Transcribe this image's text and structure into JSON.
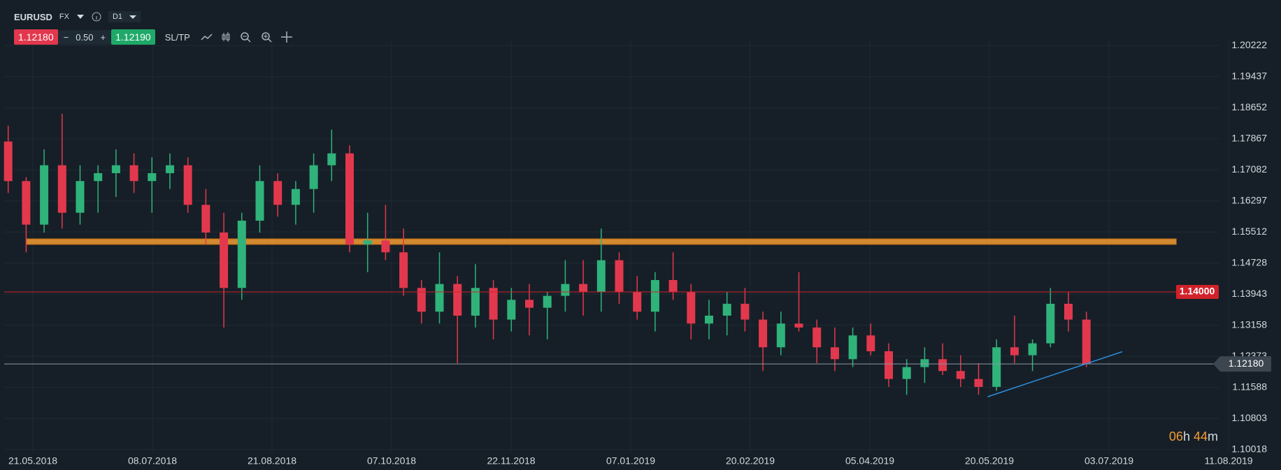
{
  "toolbar": {
    "symbol": "EURUSD",
    "market": "FX",
    "timeframe": "D1",
    "bid": "1.12180",
    "spread": "0.50",
    "ask": "1.12190",
    "sltp": "SL/TP"
  },
  "chart_data": {
    "type": "candlestick",
    "candles": [
      [
        1.178,
        1.182,
        1.165,
        1.168
      ],
      [
        1.168,
        1.169,
        1.15,
        1.157
      ],
      [
        1.157,
        1.176,
        1.155,
        1.172
      ],
      [
        1.172,
        1.185,
        1.156,
        1.16
      ],
      [
        1.16,
        1.172,
        1.157,
        1.168
      ],
      [
        1.168,
        1.172,
        1.16,
        1.17
      ],
      [
        1.17,
        1.176,
        1.164,
        1.172
      ],
      [
        1.172,
        1.175,
        1.165,
        1.168
      ],
      [
        1.168,
        1.174,
        1.16,
        1.17
      ],
      [
        1.17,
        1.175,
        1.166,
        1.172
      ],
      [
        1.172,
        1.174,
        1.16,
        1.162
      ],
      [
        1.162,
        1.166,
        1.152,
        1.155
      ],
      [
        1.155,
        1.16,
        1.131,
        1.141
      ],
      [
        1.141,
        1.16,
        1.138,
        1.158
      ],
      [
        1.158,
        1.172,
        1.155,
        1.168
      ],
      [
        1.168,
        1.17,
        1.159,
        1.162
      ],
      [
        1.162,
        1.168,
        1.157,
        1.166
      ],
      [
        1.166,
        1.175,
        1.16,
        1.172
      ],
      [
        1.172,
        1.181,
        1.168,
        1.175
      ],
      [
        1.175,
        1.177,
        1.15,
        1.152
      ],
      [
        1.152,
        1.16,
        1.145,
        1.153
      ],
      [
        1.153,
        1.162,
        1.148,
        1.15
      ],
      [
        1.15,
        1.156,
        1.139,
        1.141
      ],
      [
        1.141,
        1.143,
        1.132,
        1.135
      ],
      [
        1.135,
        1.15,
        1.132,
        1.142
      ],
      [
        1.142,
        1.144,
        1.122,
        1.134
      ],
      [
        1.134,
        1.147,
        1.131,
        1.141
      ],
      [
        1.141,
        1.143,
        1.128,
        1.133
      ],
      [
        1.133,
        1.141,
        1.13,
        1.138
      ],
      [
        1.138,
        1.142,
        1.129,
        1.136
      ],
      [
        1.136,
        1.14,
        1.128,
        1.139
      ],
      [
        1.139,
        1.148,
        1.135,
        1.142
      ],
      [
        1.142,
        1.148,
        1.134,
        1.14
      ],
      [
        1.14,
        1.156,
        1.135,
        1.148
      ],
      [
        1.148,
        1.15,
        1.137,
        1.14
      ],
      [
        1.14,
        1.144,
        1.133,
        1.135
      ],
      [
        1.135,
        1.145,
        1.13,
        1.143
      ],
      [
        1.143,
        1.15,
        1.138,
        1.14
      ],
      [
        1.14,
        1.142,
        1.128,
        1.132
      ],
      [
        1.132,
        1.138,
        1.128,
        1.134
      ],
      [
        1.134,
        1.14,
        1.129,
        1.137
      ],
      [
        1.137,
        1.141,
        1.13,
        1.133
      ],
      [
        1.133,
        1.135,
        1.12,
        1.126
      ],
      [
        1.126,
        1.135,
        1.124,
        1.132
      ],
      [
        1.132,
        1.145,
        1.13,
        1.131
      ],
      [
        1.131,
        1.133,
        1.122,
        1.126
      ],
      [
        1.126,
        1.131,
        1.12,
        1.123
      ],
      [
        1.123,
        1.131,
        1.121,
        1.129
      ],
      [
        1.129,
        1.132,
        1.124,
        1.125
      ],
      [
        1.125,
        1.127,
        1.116,
        1.118
      ],
      [
        1.118,
        1.123,
        1.114,
        1.121
      ],
      [
        1.121,
        1.126,
        1.117,
        1.123
      ],
      [
        1.123,
        1.127,
        1.119,
        1.12
      ],
      [
        1.12,
        1.124,
        1.116,
        1.118
      ],
      [
        1.118,
        1.122,
        1.114,
        1.116
      ],
      [
        1.116,
        1.128,
        1.115,
        1.126
      ],
      [
        1.126,
        1.134,
        1.122,
        1.124
      ],
      [
        1.124,
        1.128,
        1.12,
        1.127
      ],
      [
        1.127,
        1.141,
        1.126,
        1.137
      ],
      [
        1.137,
        1.14,
        1.13,
        1.133
      ],
      [
        1.133,
        1.135,
        1.121,
        1.1218
      ]
    ],
    "up_color": "#2fb37a",
    "down_color": "#e2384d",
    "xticks": [
      "21.05.2018",
      "08.07.2018",
      "21.08.2018",
      "07.10.2018",
      "22.11.2018",
      "07.01.2019",
      "20.02.2019",
      "05.04.2019",
      "20.05.2019",
      "03.07.2019",
      "11.08.2019"
    ],
    "ylim": [
      1.10018,
      1.20222
    ],
    "yticks": [
      1.20222,
      1.19437,
      1.18652,
      1.17867,
      1.17082,
      1.16297,
      1.15512,
      1.14728,
      1.13943,
      1.13158,
      1.12373,
      1.11588,
      1.10803,
      1.10018
    ],
    "grid": true,
    "levels": [
      {
        "value": 1.14,
        "label": "1.14000",
        "color": "#d1212a"
      },
      {
        "value": 1.1218,
        "label": "1.12180",
        "color": "#8a99a6"
      }
    ],
    "support": {
      "x": [
        1,
        65
      ],
      "y": 1.1527,
      "color": "#f39c33"
    },
    "trendline": {
      "x": [
        54.5,
        62
      ],
      "y": [
        1.1135,
        1.1249
      ],
      "color": "#2d8fe0"
    },
    "timer": {
      "hours": "06",
      "h": "h",
      "minutes": "44",
      "m": "m"
    }
  }
}
